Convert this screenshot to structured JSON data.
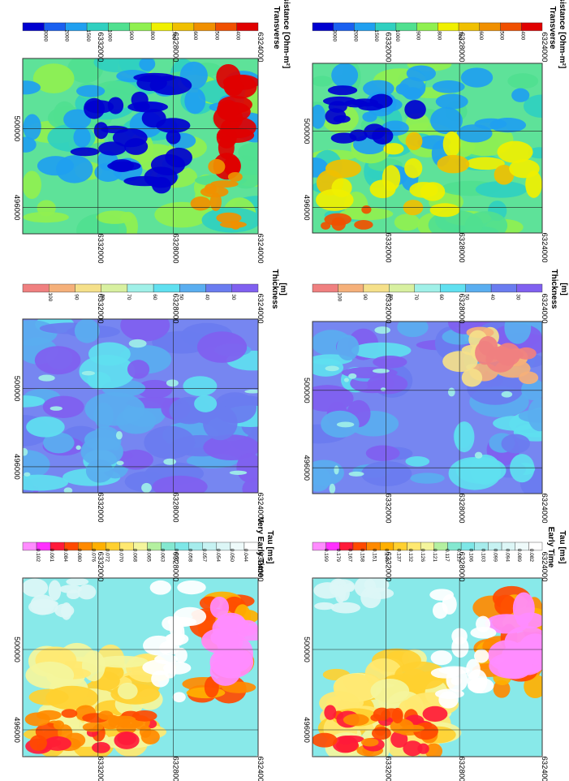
{
  "panels": [
    {
      "id": "very-early-time",
      "title_lines": [
        "Very Early Time",
        "Tau [ms]"
      ],
      "legend": {
        "colors": [
          "#ff8cff",
          "#ff30ff",
          "#ff1a3a",
          "#ff4a00",
          "#ff8a00",
          "#ffb000",
          "#ffd030",
          "#ffe870",
          "#f4f59c",
          "#b4f0a0",
          "#84e8d0",
          "#7ee7e7",
          "#a6ecec",
          "#c6f2f2",
          "#dcf6f6",
          "#eefafa",
          "#ffffff"
        ],
        "labels": [
          "0.102",
          "0.091",
          "0.084",
          "0.080",
          "0.076",
          "0.072",
          "0.070",
          "0.068",
          "0.065",
          "0.063",
          "0.061",
          "0.058",
          "0.057",
          "0.054",
          "0.050",
          "0.044"
        ]
      },
      "top_ticks": [
        "6332000",
        "6328000",
        "6324000"
      ],
      "left_ticks": [
        "500000",
        "496000"
      ],
      "bottom_ticks": [
        "6332000",
        "6328000",
        "6324000"
      ]
    },
    {
      "id": "thickness-top",
      "title_lines": [
        "Thickness",
        "[m]"
      ],
      "legend": {
        "colors": [
          "#f08080",
          "#f5b07a",
          "#f5e08a",
          "#d8f0a0",
          "#a0f0e8",
          "#60e0f0",
          "#5aaef0",
          "#6a7cf0",
          "#8060f0"
        ],
        "labels": [
          "100",
          "90",
          "80",
          "70",
          "60",
          "50",
          "40",
          "30"
        ]
      },
      "top_ticks": [
        "6332000",
        "6328000",
        "6324000"
      ],
      "left_ticks": [
        "500000",
        "496000"
      ],
      "bottom_ticks": [
        "6332000",
        "6328000",
        "6324000"
      ]
    },
    {
      "id": "transverse-resistance-top",
      "title_lines": [
        "Transverse",
        "Resistance [Ohm-m²]"
      ],
      "legend": {
        "colors": [
          "#0000d0",
          "#1a60f0",
          "#20a0f0",
          "#30d0c0",
          "#50e090",
          "#90f050",
          "#f0f000",
          "#f0c000",
          "#f09000",
          "#f05000",
          "#e00000"
        ],
        "labels": [
          "3000",
          "2000",
          "1500",
          "1000",
          "900",
          "800",
          "700",
          "600",
          "500",
          "400"
        ]
      },
      "top_ticks": [
        "6332000",
        "6328000",
        "6324000"
      ],
      "left_ticks": [
        "500000",
        "496000"
      ],
      "bottom_ticks": [
        "6332000",
        "6328000",
        "6324000"
      ]
    },
    {
      "id": "early-time",
      "title_lines": [
        "Early Time",
        "Tau [ms]"
      ],
      "legend": {
        "colors": [
          "#ff8cff",
          "#ff30ff",
          "#ff1a3a",
          "#ff4a00",
          "#ff8a00",
          "#ffb000",
          "#ffd030",
          "#ffe870",
          "#f4f59c",
          "#b4f0a0",
          "#84e8d0",
          "#7ee7e7",
          "#a6ecec",
          "#c6f2f2",
          "#dcf6f6",
          "#eefafa",
          "#ffffff"
        ],
        "labels": [
          "0.199",
          "0.179",
          "0.167",
          "0.158",
          "0.151",
          "0.144",
          "0.137",
          "0.132",
          "0.126",
          "0.121",
          "0.117",
          "0.113",
          "0.106",
          "0.103",
          "0.099",
          "0.094",
          "0.089",
          "0.082"
        ]
      },
      "top_ticks": [
        "6332000",
        "6328000",
        "6324000"
      ],
      "left_ticks": [
        "500000",
        "496000"
      ],
      "bottom_ticks": [
        "6332000",
        "6328000",
        "6324000"
      ]
    },
    {
      "id": "thickness-bottom",
      "title_lines": [
        "Thickness",
        "[m]"
      ],
      "legend": {
        "colors": [
          "#f08080",
          "#f5b07a",
          "#f5e08a",
          "#d8f0a0",
          "#a0f0e8",
          "#60e0f0",
          "#5aaef0",
          "#6a7cf0",
          "#8060f0"
        ],
        "labels": [
          "100",
          "90",
          "80",
          "70",
          "60",
          "50",
          "40",
          "30"
        ]
      },
      "top_ticks": [
        "6332000",
        "6328000",
        "6324000"
      ],
      "left_ticks": [
        "500000",
        "496000"
      ],
      "bottom_ticks": [
        "6332000",
        "6328000",
        "6324000"
      ]
    },
    {
      "id": "transverse-resistance-bottom",
      "title_lines": [
        "Transverse",
        "Resistance [Ohm-m²]"
      ],
      "legend": {
        "colors": [
          "#0000d0",
          "#1a60f0",
          "#20a0f0",
          "#30d0c0",
          "#50e090",
          "#90f050",
          "#f0f000",
          "#f0c000",
          "#f09000",
          "#f05000",
          "#e00000"
        ],
        "labels": [
          "3000",
          "2000",
          "1500",
          "1000",
          "900",
          "800",
          "700",
          "600",
          "500",
          "400"
        ]
      },
      "top_ticks": [
        "6332000",
        "6328000",
        "6324000"
      ],
      "left_ticks": [
        "500000",
        "496000"
      ],
      "bottom_ticks": [
        "6332000",
        "6328000",
        "6324000"
      ]
    }
  ]
}
